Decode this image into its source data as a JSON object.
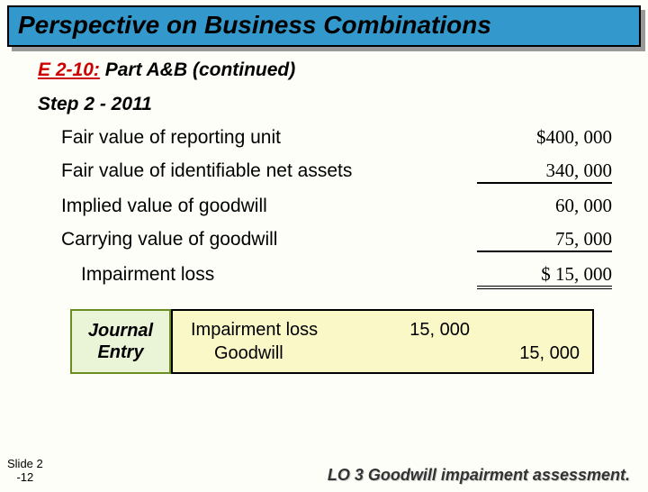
{
  "title": "Perspective on Business Combinations",
  "sub": {
    "code": "E 2-10:",
    "rest": "  Part A&B (continued)"
  },
  "step": "Step 2 - 2011",
  "rows": [
    {
      "label": "Fair value of reporting unit",
      "value": "$400, 000",
      "u": ""
    },
    {
      "label": "Fair value of identifiable net assets",
      "value": "340, 000",
      "u": "single"
    },
    {
      "label": "Implied value of goodwill",
      "value": "60, 000",
      "u": ""
    },
    {
      "label": "Carrying value of goodwill",
      "value": "75, 000",
      "u": "single"
    },
    {
      "label": "Impairment loss",
      "value": "$  15, 000",
      "u": "double",
      "indent": true
    }
  ],
  "journal": {
    "label": "Journal Entry",
    "line1": "Impairment loss",
    "line2": "Goodwill",
    "debit": "15, 000",
    "credit": "15, 000"
  },
  "footer": {
    "slide": "Slide 2",
    "slidenum": "-12",
    "lo": "LO 3  Goodwill impairment assessment."
  },
  "colors": {
    "titlebg": "#3399cc",
    "jebg": "#fbf8c8",
    "jelabelbg": "#eaf4d6",
    "bodybg": "#fefef8"
  }
}
